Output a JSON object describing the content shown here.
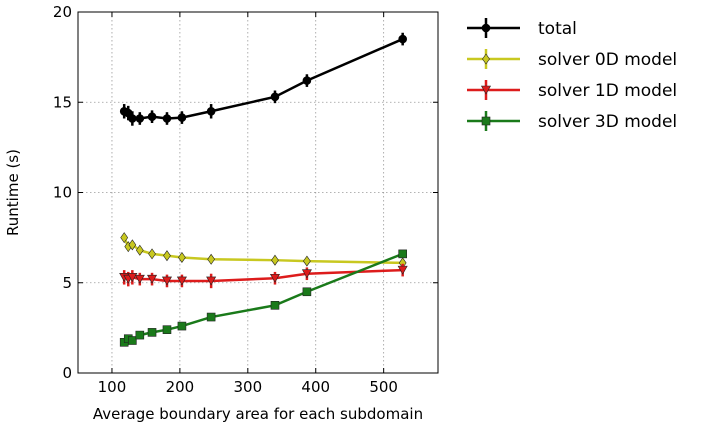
{
  "chart_data": {
    "type": "line",
    "xlabel": "Average boundary area for each subdomain",
    "ylabel": "Runtime (s)",
    "xlim": [
      50,
      580
    ],
    "ylim": [
      0,
      20
    ],
    "xticks": [
      100,
      200,
      300,
      400,
      500
    ],
    "yticks": [
      0,
      5,
      10,
      15,
      20
    ],
    "x_tick_labels": [
      "100",
      "200",
      "300",
      "400",
      "500"
    ],
    "y_tick_labels": [
      "0",
      "5",
      "10",
      "15",
      "20"
    ],
    "grid": true,
    "grid_style": "dotted",
    "legend_position": "outside-right",
    "error_bars": true,
    "x": [
      118,
      124,
      130,
      141,
      159,
      181,
      203,
      246,
      340,
      387,
      528
    ],
    "series": [
      {
        "name": "total",
        "color": "#000000",
        "marker": "circle",
        "values": [
          14.5,
          14.4,
          14.1,
          14.1,
          14.2,
          14.1,
          14.15,
          14.5,
          15.3,
          16.2,
          18.5
        ],
        "errors": [
          0.4,
          0.4,
          0.4,
          0.35,
          0.35,
          0.35,
          0.35,
          0.4,
          0.35,
          0.35,
          0.35
        ]
      },
      {
        "name": "solver 0D model",
        "color": "#c8c820",
        "marker": "diamond",
        "values": [
          7.5,
          7.0,
          7.1,
          6.8,
          6.6,
          6.5,
          6.4,
          6.3,
          6.25,
          6.2,
          6.1
        ],
        "errors": [
          0.1,
          0.1,
          0.1,
          0.1,
          0.1,
          0.1,
          0.1,
          0.1,
          0.1,
          0.1,
          0.1
        ]
      },
      {
        "name": "solver 1D model",
        "color": "#dd1c1c",
        "marker": "triangle-down",
        "values": [
          5.3,
          5.2,
          5.3,
          5.2,
          5.2,
          5.1,
          5.1,
          5.1,
          5.25,
          5.5,
          5.7
        ],
        "errors": [
          0.4,
          0.4,
          0.4,
          0.35,
          0.35,
          0.35,
          0.35,
          0.4,
          0.35,
          0.35,
          0.35
        ]
      },
      {
        "name": "solver 3D model",
        "color": "#1a7a1a",
        "marker": "square",
        "values": [
          1.7,
          1.9,
          1.8,
          2.1,
          2.25,
          2.4,
          2.6,
          3.1,
          3.75,
          4.5,
          6.6
        ],
        "errors": [
          0.05,
          0.05,
          0.05,
          0.05,
          0.05,
          0.05,
          0.05,
          0.05,
          0.05,
          0.05,
          0.05
        ]
      }
    ]
  }
}
